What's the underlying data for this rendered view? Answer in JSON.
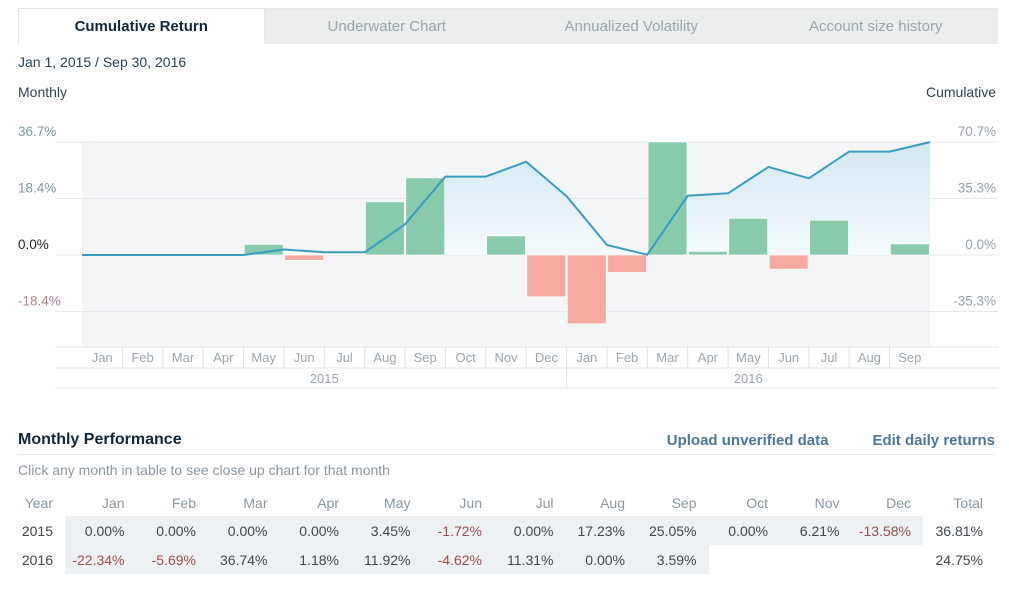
{
  "tabs": [
    {
      "label": "Cumulative Return",
      "active": true
    },
    {
      "label": "Underwater Chart",
      "active": false
    },
    {
      "label": "Annualized Volatility",
      "active": false
    },
    {
      "label": "Account size history",
      "active": false
    }
  ],
  "date_range": "Jan 1, 2015 / Sep 30, 2016",
  "chart_data": {
    "type": "bar+line",
    "left_axis_title": "Monthly",
    "right_axis_title": "Cumulative",
    "left_ticks": [
      {
        "label": "36.7%",
        "value": 36.7,
        "color": "#7f999d"
      },
      {
        "label": "18.4%",
        "value": 18.35,
        "color": "#7f999d"
      },
      {
        "label": "0.0%",
        "value": 0,
        "color": "#21282d"
      },
      {
        "label": "-18.4%",
        "value": -18.35,
        "color": "#aa8a8c"
      }
    ],
    "right_ticks": [
      {
        "label": "70.7%",
        "value": 70.7
      },
      {
        "label": "35.3%",
        "value": 35.35
      },
      {
        "label": "0.0%",
        "value": 0
      },
      {
        "label": "-35.3%",
        "value": -35.35
      }
    ],
    "left_axis_max": 36.7,
    "right_axis_max": 70.7,
    "months": [
      "Jan",
      "Feb",
      "Mar",
      "Apr",
      "May",
      "Jun",
      "Jul",
      "Aug",
      "Sep",
      "Oct",
      "Nov",
      "Dec",
      "Jan",
      "Feb",
      "Mar",
      "Apr",
      "May",
      "Jun",
      "Jul",
      "Aug",
      "Sep"
    ],
    "year_groups": [
      {
        "label": "2015",
        "span": 12
      },
      {
        "label": "2016",
        "span": 9
      }
    ],
    "series": [
      {
        "name": "Monthly",
        "type": "bar",
        "values": [
          0,
          0,
          0,
          0,
          3.45,
          -1.72,
          0,
          17.23,
          25.05,
          0,
          6.21,
          -13.58,
          -22.34,
          -5.69,
          36.74,
          1.18,
          11.92,
          -4.62,
          11.31,
          0,
          3.59
        ]
      },
      {
        "name": "Cumulative",
        "type": "line",
        "values": [
          0,
          0,
          0,
          0,
          3.45,
          1.67,
          1.67,
          19.19,
          49.05,
          49.05,
          58.31,
          36.81,
          6.25,
          0.2,
          37.01,
          38.63,
          55.15,
          47.98,
          64.72,
          64.72,
          70.63
        ]
      }
    ],
    "colors": {
      "bar_positive": "#88caac",
      "bar_negative": "#f6a9a0",
      "line": "#3a9dbf",
      "area_top": "#cde6f0",
      "area_bottom": "#f5fafc",
      "plot_bg": "#f3f5f6",
      "gridline": "#e4e8ea",
      "separator": "#dde3e6",
      "tick_right": "#96a2aa",
      "month_label": "#9aa6ae"
    }
  },
  "performance": {
    "title": "Monthly Performance",
    "links": [
      {
        "label": "Upload unverified data"
      },
      {
        "label": "Edit daily returns"
      }
    ],
    "hint": "Click any month in table to see close up chart for that month",
    "columns": [
      "Year",
      "Jan",
      "Feb",
      "Mar",
      "Apr",
      "May",
      "Jun",
      "Jul",
      "Aug",
      "Sep",
      "Oct",
      "Nov",
      "Dec",
      "Total"
    ],
    "rows": [
      {
        "year": "2015",
        "values": [
          "0.00%",
          "0.00%",
          "0.00%",
          "0.00%",
          "3.45%",
          "-1.72%",
          "0.00%",
          "17.23%",
          "25.05%",
          "0.00%",
          "6.21%",
          "-13.58%"
        ],
        "highlighted_months": 12,
        "total": "36.81%"
      },
      {
        "year": "2016",
        "values": [
          "-22.34%",
          "-5.69%",
          "36.74%",
          "1.18%",
          "11.92%",
          "-4.62%",
          "11.31%",
          "0.00%",
          "3.59%",
          "",
          "",
          ""
        ],
        "highlighted_months": 9,
        "total": "24.75%"
      }
    ]
  }
}
